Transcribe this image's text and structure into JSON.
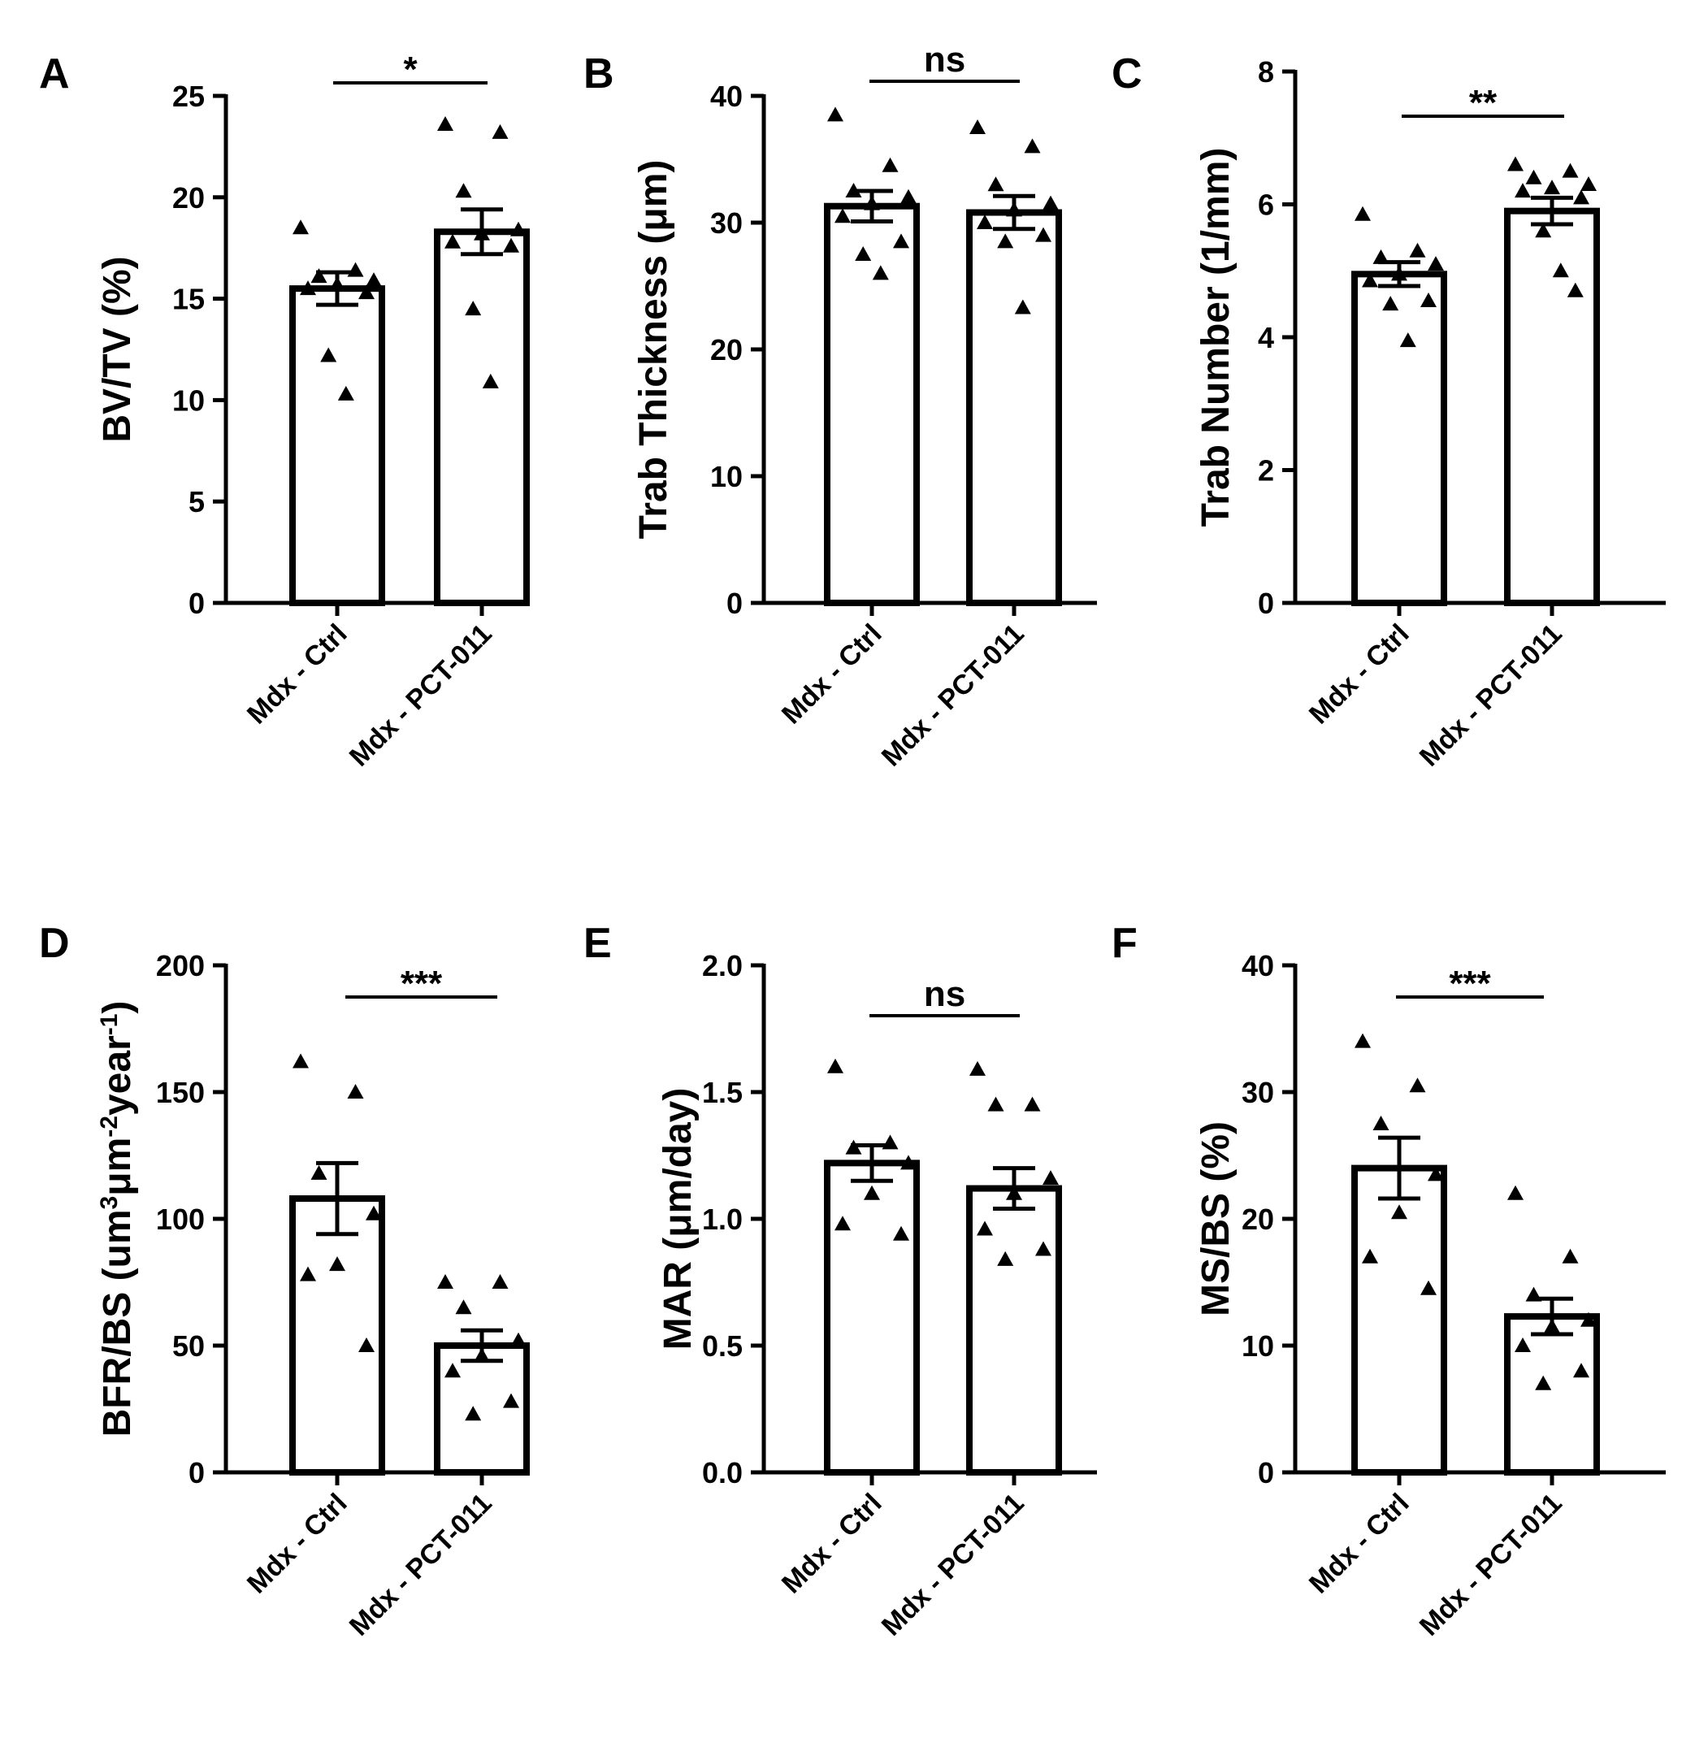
{
  "chart_data": [
    {
      "type": "bar",
      "panel": "A",
      "title": "",
      "xlabel": "",
      "ylabel": "BV/TV (%)",
      "categories": [
        "Mdx - Ctrl",
        "Mdx - PCT-011"
      ],
      "values": [
        15.5,
        18.3
      ],
      "sem": [
        0.8,
        1.1
      ],
      "points": [
        [
          18.5,
          16.4,
          16.1,
          15.9,
          15.7,
          15.5,
          15.3,
          12.2,
          10.3
        ],
        [
          23.6,
          23.2,
          20.3,
          18.4,
          18.2,
          17.8,
          17.6,
          14.5,
          10.9
        ]
      ],
      "ylim": [
        0,
        25
      ],
      "yticks": [
        0,
        5,
        10,
        15,
        20,
        25
      ],
      "significance": "*"
    },
    {
      "type": "bar",
      "panel": "B",
      "title": "",
      "xlabel": "",
      "ylabel": "Trab Thickness (μm)",
      "categories": [
        "Mdx - Ctrl",
        "Mdx - PCT-011"
      ],
      "values": [
        31.3,
        30.8
      ],
      "sem": [
        1.2,
        1.3
      ],
      "points": [
        [
          38.5,
          34.5,
          32.5,
          32.0,
          31.5,
          30.5,
          28.5,
          27.5,
          26.0
        ],
        [
          37.5,
          36.0,
          33.0,
          31.5,
          31.0,
          30.0,
          29.0,
          28.5,
          23.3
        ]
      ],
      "ylim": [
        0,
        40
      ],
      "yticks": [
        0,
        10,
        20,
        30,
        40
      ],
      "significance": "ns"
    },
    {
      "type": "bar",
      "panel": "C",
      "title": "",
      "xlabel": "",
      "ylabel": "Trab Number (1/mm)",
      "categories": [
        "Mdx - Ctrl",
        "Mdx - PCT-011"
      ],
      "values": [
        4.95,
        5.9
      ],
      "sem": [
        0.18,
        0.2
      ],
      "points": [
        [
          5.85,
          5.3,
          5.2,
          5.1,
          4.95,
          4.85,
          4.55,
          4.5,
          3.95
        ],
        [
          6.6,
          6.5,
          6.4,
          6.3,
          6.25,
          6.2,
          6.1,
          5.6,
          5.0,
          4.7
        ]
      ],
      "ylim": [
        0,
        8
      ],
      "yticks": [
        0,
        2,
        4,
        6,
        8
      ],
      "significance": "**"
    },
    {
      "type": "bar",
      "panel": "D",
      "title": "",
      "xlabel": "",
      "ylabel": "BFR/BS (um³μm⁻²year⁻¹)",
      "ylabel_parts": [
        "BFR/BS (um",
        "3",
        "μm",
        "-2",
        "year",
        "-1",
        ")"
      ],
      "categories": [
        "Mdx - Ctrl",
        "Mdx - PCT-011"
      ],
      "values": [
        108,
        50
      ],
      "sem": [
        14,
        6
      ],
      "points": [
        [
          162,
          150,
          118,
          102,
          82,
          78,
          50
        ],
        [
          75,
          75,
          65,
          52,
          46,
          40,
          28,
          23
        ]
      ],
      "ylim": [
        0,
        200
      ],
      "yticks": [
        0,
        50,
        100,
        150,
        200
      ],
      "significance": "***"
    },
    {
      "type": "bar",
      "panel": "E",
      "title": "",
      "xlabel": "",
      "ylabel": "MAR (μm/day)",
      "categories": [
        "Mdx - Ctrl",
        "Mdx - PCT-011"
      ],
      "values": [
        1.22,
        1.12
      ],
      "sem": [
        0.07,
        0.08
      ],
      "points": [
        [
          1.6,
          1.3,
          1.28,
          1.22,
          1.1,
          0.98,
          0.94
        ],
        [
          1.59,
          1.45,
          1.45,
          1.16,
          1.1,
          0.96,
          0.88,
          0.84
        ]
      ],
      "ylim": [
        0,
        2
      ],
      "yticks": [
        "0.0",
        "0.5",
        "1.0",
        "1.5",
        "2.0"
      ],
      "significance": "ns"
    },
    {
      "type": "bar",
      "panel": "F",
      "title": "",
      "xlabel": "",
      "ylabel": "MS/BS (%)",
      "categories": [
        "Mdx - Ctrl",
        "Mdx - PCT-011"
      ],
      "values": [
        24,
        12.3
      ],
      "sem": [
        2.4,
        1.4
      ],
      "points": [
        [
          34,
          30.5,
          27.5,
          23.5,
          20.5,
          17,
          14.5
        ],
        [
          22,
          17,
          14,
          12,
          11.5,
          10,
          8,
          7
        ]
      ],
      "ylim": [
        0,
        40
      ],
      "yticks": [
        0,
        10,
        20,
        30,
        40
      ],
      "significance": "***"
    }
  ]
}
